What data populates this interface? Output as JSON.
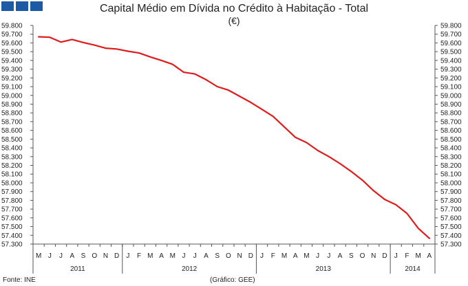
{
  "header": {
    "title": "Capital Médio em Dívida no Crédito à Habitação - Total",
    "subtitle": "(€)"
  },
  "footer": {
    "source": "Fonte: INE",
    "credit": "(Gráfico: GEE)"
  },
  "colors": {
    "brand": "#1c5aa6",
    "series": "#e01b1b",
    "axis": "#555555"
  },
  "chart_data": {
    "type": "line",
    "title": "Capital Médio em Dívida no Crédito à Habitação - Total",
    "subtitle": "(€)",
    "ylim": [
      57300,
      59800
    ],
    "y_tick_step": 100,
    "y_tick_labels": [
      "59.800",
      "59.700",
      "59.600",
      "59.500",
      "59.400",
      "59.300",
      "59.200",
      "59.100",
      "59.000",
      "58.900",
      "58.800",
      "58.700",
      "58.600",
      "58.500",
      "58.400",
      "58.300",
      "58.200",
      "58.100",
      "58.000",
      "57.900",
      "57.800",
      "57.700",
      "57.600",
      "57.500",
      "57.400",
      "57.300"
    ],
    "month_labels": [
      "M",
      "J",
      "J",
      "A",
      "S",
      "O",
      "N",
      "D",
      "J",
      "F",
      "M",
      "A",
      "M",
      "J",
      "J",
      "A",
      "S",
      "O",
      "N",
      "D",
      "J",
      "F",
      "M",
      "A",
      "M",
      "J",
      "J",
      "A",
      "S",
      "O",
      "N",
      "D",
      "J",
      "F",
      "M",
      "A"
    ],
    "year_labels": [
      {
        "label": "2011",
        "months": 8
      },
      {
        "label": "2012",
        "months": 12
      },
      {
        "label": "2013",
        "months": 12
      },
      {
        "label": "2014",
        "months": 4
      }
    ],
    "series": [
      {
        "values": [
          59670,
          59665,
          59610,
          59640,
          59605,
          59575,
          59540,
          59530,
          59505,
          59485,
          59440,
          59400,
          59355,
          59265,
          59245,
          59180,
          59100,
          59060,
          58990,
          58920,
          58840,
          58760,
          58640,
          58520,
          58460,
          58370,
          58300,
          58220,
          58130,
          58030,
          57910,
          57810,
          57750,
          57650,
          57480,
          57365
        ]
      }
    ],
    "grid": false,
    "legend": "none"
  }
}
